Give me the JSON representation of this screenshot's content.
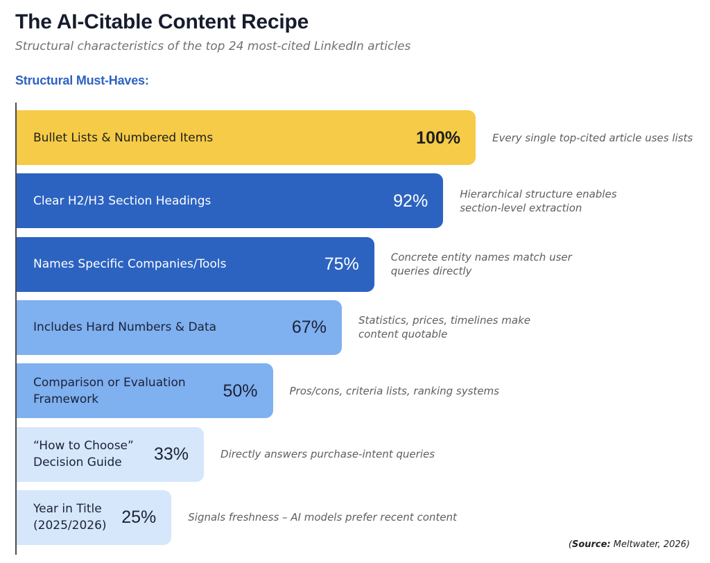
{
  "chart_data": {
    "type": "bar",
    "orientation": "horizontal",
    "title": "The AI-Citable Content Recipe",
    "subtitle": "Structural characteristics of the top 24 most-cited LinkedIn articles",
    "ylabel": "Structural Must-Haves:",
    "categories": [
      "Bullet Lists & Numbered Items",
      "Clear H2/H3 Section Headings",
      "Names Specific Companies/Tools",
      "Includes Hard Numbers & Data",
      "Comparison or Evaluation\nFramework",
      "“How to Choose”\nDecision Guide",
      "Year in Title\n(2025/2026)"
    ],
    "values": [
      100,
      92,
      75,
      67,
      50,
      33,
      25
    ],
    "value_labels": [
      "100%",
      "92%",
      "75%",
      "67%",
      "50%",
      "33%",
      "25%"
    ],
    "xlim": [
      0,
      100
    ],
    "grid": false,
    "annotations": [
      "Every single top-cited article uses lists",
      "Hierarchical structure enables\nsection-level extraction",
      "Concrete entity names match user\nqueries directly",
      "Statistics, prices, timelines make\ncontent quotable",
      "Pros/cons, criteria lists, ranking systems",
      "Directly answers purchase-intent queries",
      "Signals freshness – AI models prefer recent content"
    ],
    "bar_colors": [
      "#F5CB47",
      "#2C63C1",
      "#2C63C1",
      "#7FB0F0",
      "#7FB0F0",
      "#D6E6FB",
      "#D6E6FB"
    ],
    "label_colors": [
      "#1E1E1E",
      "#FFFFFF",
      "#FFFFFF",
      "#1B2235",
      "#1B2235",
      "#1B2235",
      "#1B2235"
    ],
    "source": {
      "open": "(",
      "label": "Source:",
      "text": "Meltwater, 2026",
      "close": ")"
    }
  },
  "colors": {
    "title": "#161C2D",
    "subtitle": "#707070",
    "heading": "#2D62C0",
    "annotation": "#5E5E5E",
    "axis": "#4A4A4A"
  }
}
